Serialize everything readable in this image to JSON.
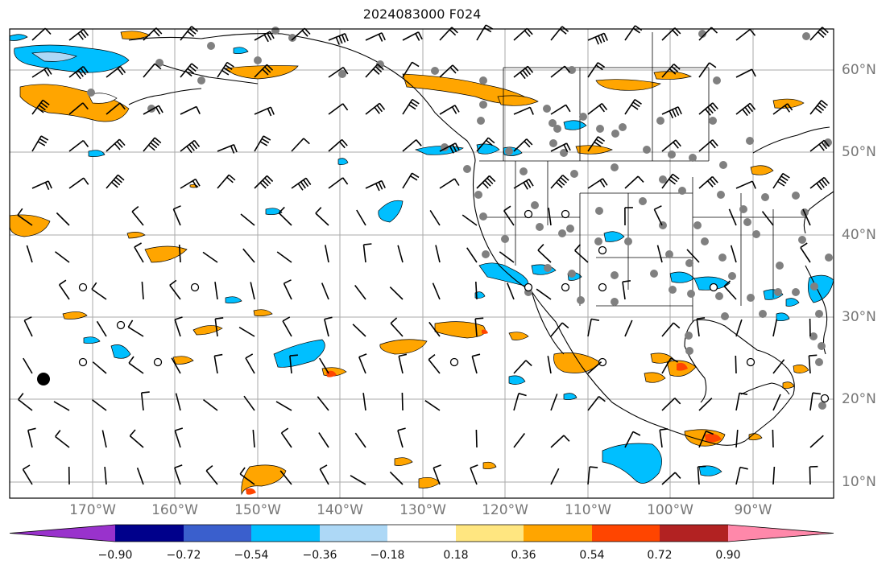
{
  "title": "2024083000 F024",
  "lon_labels": [
    "170°W",
    "160°W",
    "150°W",
    "140°W",
    "130°W",
    "120°W",
    "110°W",
    "100°W",
    "90°W"
  ],
  "lat_labels": [
    "60°N",
    "50°N",
    "40°N",
    "30°N",
    "20°N",
    "10°N"
  ],
  "colorbar": {
    "labels": [
      "−0.90",
      "−0.72",
      "−0.54",
      "−0.36",
      "−0.18",
      "0.18",
      "0.36",
      "0.54",
      "0.72",
      "0.90"
    ],
    "colors": [
      "#9932cc",
      "#00008b",
      "#3a5fcd",
      "#00bfff",
      "#add8f6",
      "#ffffff",
      "#ffe680",
      "#ffa500",
      "#ff4500",
      "#b22222",
      "#ff88aa"
    ]
  },
  "colors": {
    "positive": "#ffa500",
    "positive_strong": "#ff4500",
    "negative": "#00bfff",
    "negative_light": "#add8f6",
    "grid": "#aaaaaa",
    "station": "#808080",
    "coast": "#000000"
  }
}
